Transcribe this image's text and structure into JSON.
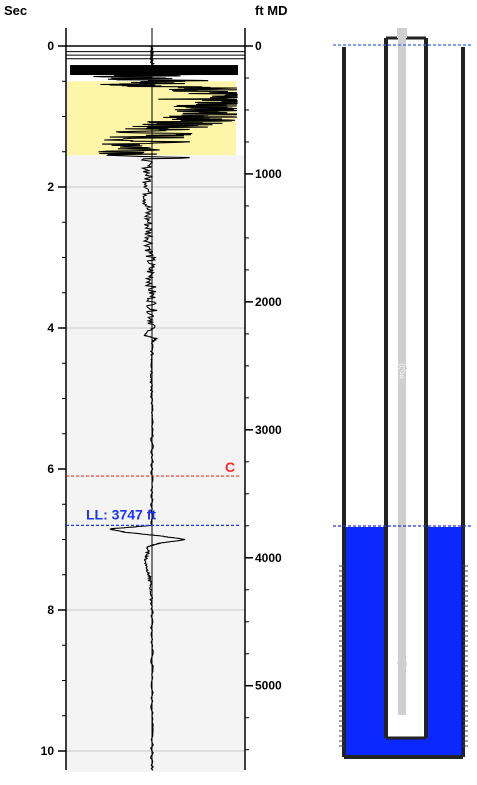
{
  "chart_data": {
    "type": "line",
    "title": "",
    "left_axis": {
      "label": "Sec",
      "range": [
        0,
        10
      ],
      "ticks": [
        0,
        2,
        4,
        6,
        8,
        10
      ],
      "tick_labels": [
        "0",
        "2",
        "4",
        "6",
        "8",
        "10"
      ]
    },
    "right_axis": {
      "label": "ft MD",
      "unit": "ft MD",
      "depth_at_top": 0,
      "ticks": [
        0,
        1000,
        2000,
        3000,
        4000,
        5000
      ],
      "tick_labels": [
        "0",
        "1000",
        "2000",
        "3000",
        "4000",
        "5000"
      ]
    },
    "grid": true,
    "gridlines_sec": [
      2,
      4,
      8,
      10
    ],
    "highlight_band": {
      "from_sec": 0.5,
      "to_sec": 1.55,
      "color": "#fdf5a8"
    },
    "shaded_region": {
      "from_sec": 1.55,
      "to_sec": 10.3,
      "color": "#f4f4f4"
    },
    "markers": [
      {
        "label": "C",
        "sec": 6.1,
        "color": "#ff2a2a",
        "style": "dashed"
      },
      {
        "label": "LL: 3747 ft",
        "sec": 6.8,
        "depth_ft": 3747,
        "color": "#1a33ff",
        "style": "dashed"
      }
    ],
    "series": [
      {
        "points": [
          [
            0.0,
            0
          ],
          [
            0.05,
            0
          ],
          [
            0.1,
            0
          ],
          [
            0.15,
            0
          ],
          [
            0.2,
            0
          ],
          [
            0.25,
            0
          ],
          [
            0.3,
            0
          ],
          [
            0.35,
            -0.2
          ],
          [
            0.4,
            0.1
          ],
          [
            0.45,
            -0.3
          ],
          [
            0.5,
            0.4
          ],
          [
            0.55,
            -0.1
          ],
          [
            0.6,
            0.6
          ],
          [
            0.65,
            0.8
          ],
          [
            0.7,
            0.9
          ],
          [
            0.75,
            0.5
          ],
          [
            0.8,
            1.0
          ],
          [
            0.85,
            0.8
          ],
          [
            0.9,
            0.6
          ],
          [
            0.95,
            0.9
          ],
          [
            1.0,
            0.7
          ],
          [
            1.05,
            0.5
          ],
          [
            1.1,
            0.3
          ],
          [
            1.15,
            0.15
          ],
          [
            1.2,
            0.05
          ],
          [
            1.3,
            -0.05
          ],
          [
            1.4,
            -0.1
          ],
          [
            1.5,
            -0.08
          ],
          [
            1.6,
            -0.06
          ],
          [
            1.8,
            -0.05
          ],
          [
            2.0,
            -0.04
          ],
          [
            2.2,
            -0.06
          ],
          [
            2.4,
            -0.05
          ],
          [
            2.6,
            -0.04
          ],
          [
            2.8,
            -0.03
          ],
          [
            3.0,
            -0.02
          ],
          [
            3.2,
            -0.02
          ],
          [
            3.4,
            -0.01
          ],
          [
            3.6,
            0.0
          ],
          [
            3.8,
            0.0
          ],
          [
            4.0,
            0.01
          ],
          [
            4.1,
            -0.1
          ],
          [
            4.15,
            0.05
          ],
          [
            4.2,
            0.0
          ],
          [
            4.4,
            0.0
          ],
          [
            4.6,
            0.0
          ],
          [
            4.8,
            -0.01
          ],
          [
            5.0,
            0.0
          ],
          [
            5.4,
            0.0
          ],
          [
            5.8,
            0.0
          ],
          [
            6.2,
            0.0
          ],
          [
            6.6,
            0.0
          ],
          [
            6.8,
            0.0
          ],
          [
            6.85,
            -0.5
          ],
          [
            6.9,
            -0.3
          ],
          [
            6.95,
            0.1
          ],
          [
            7.0,
            0.4
          ],
          [
            7.05,
            0.1
          ],
          [
            7.1,
            -0.05
          ],
          [
            7.2,
            -0.05
          ],
          [
            7.3,
            -0.08
          ],
          [
            7.4,
            -0.06
          ],
          [
            7.5,
            -0.04
          ],
          [
            7.6,
            -0.02
          ],
          [
            7.8,
            -0.01
          ],
          [
            8.0,
            0.0
          ],
          [
            8.5,
            0.0
          ],
          [
            9.0,
            0.0
          ],
          [
            9.5,
            0.0
          ],
          [
            10.0,
            0.0
          ],
          [
            10.3,
            0.0
          ]
        ]
      }
    ],
    "amplitude_range": [
      -1,
      1
    ]
  },
  "wellbore": {
    "question_marks": [
      "?",
      "?"
    ],
    "fluid_color": "#0a28ff"
  }
}
